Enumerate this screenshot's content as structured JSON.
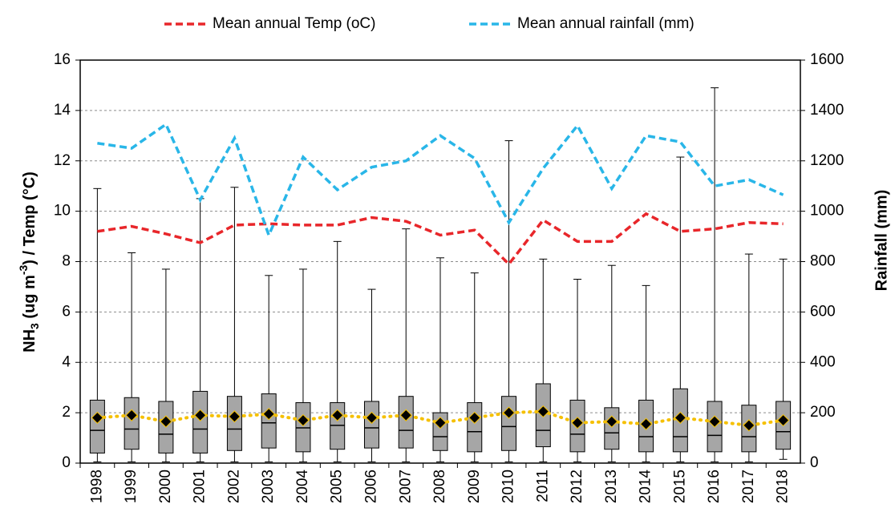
{
  "chart_data": {
    "type": "box",
    "categories": [
      "1998",
      "1999",
      "2000",
      "2001",
      "2002",
      "2003",
      "2004",
      "2005",
      "2006",
      "2007",
      "2008",
      "2009",
      "2010",
      "2011",
      "2012",
      "2013",
      "2014",
      "2015",
      "2016",
      "2017",
      "2018"
    ],
    "boxes": {
      "color": "#a6a6a6",
      "mean_color": "#000000",
      "mean_line_color": "#f5c000",
      "max": [
        10.9,
        8.35,
        7.7,
        10.5,
        10.95,
        7.45,
        7.7,
        8.8,
        6.9,
        9.3,
        8.15,
        7.55,
        12.8,
        8.1,
        7.3,
        7.85,
        7.05,
        12.15,
        14.9,
        8.3,
        8.1
      ],
      "q3": [
        2.5,
        2.6,
        2.45,
        2.85,
        2.65,
        2.75,
        2.4,
        2.4,
        2.45,
        2.65,
        2.0,
        2.4,
        2.65,
        3.15,
        2.5,
        2.2,
        2.5,
        2.95,
        2.45,
        2.3,
        2.45
      ],
      "median": [
        1.3,
        1.35,
        1.15,
        1.35,
        1.35,
        1.6,
        1.4,
        1.5,
        1.4,
        1.3,
        1.05,
        1.25,
        1.45,
        1.3,
        1.15,
        1.2,
        1.05,
        1.05,
        1.1,
        1.05,
        1.25
      ],
      "q1": [
        0.4,
        0.55,
        0.4,
        0.4,
        0.5,
        0.6,
        0.45,
        0.55,
        0.6,
        0.6,
        0.5,
        0.45,
        0.5,
        0.65,
        0.45,
        0.55,
        0.45,
        0.45,
        0.45,
        0.45,
        0.55
      ],
      "min": [
        0.05,
        0.05,
        0.05,
        0.05,
        0.05,
        0.05,
        0.05,
        0.05,
        0.05,
        0.05,
        0.05,
        0.05,
        0.05,
        0.05,
        0.05,
        0.05,
        0.05,
        0.05,
        0.05,
        0.05,
        0.15
      ],
      "mean": [
        1.8,
        1.9,
        1.65,
        1.9,
        1.85,
        1.95,
        1.7,
        1.9,
        1.8,
        1.9,
        1.6,
        1.8,
        2.0,
        2.05,
        1.6,
        1.65,
        1.55,
        1.8,
        1.65,
        1.5,
        1.7
      ]
    },
    "series": [
      {
        "name": "Mean annual Temp (oC)",
        "color": "#e8262a",
        "values": [
          9.2,
          9.4,
          9.1,
          8.75,
          9.45,
          9.5,
          9.45,
          9.45,
          9.75,
          9.6,
          9.05,
          9.25,
          7.9,
          9.65,
          8.8,
          8.8,
          9.9,
          9.2,
          9.3,
          9.55,
          9.5
        ]
      },
      {
        "name": "Mean annual rainfall (mm)",
        "color": "#29b6e8",
        "axis": "y2",
        "values": [
          1270,
          1250,
          1345,
          1045,
          1290,
          905,
          1215,
          1085,
          1175,
          1200,
          1300,
          1210,
          955,
          1170,
          1340,
          1090,
          1300,
          1275,
          1100,
          1125,
          1065
        ]
      }
    ],
    "ylabel": [
      "NH",
      "3",
      " (ug m",
      "-3",
      ") / Temp (°C)"
    ],
    "y2label": "Rainfall (mm)",
    "ylim": [
      0,
      16
    ],
    "yticks": [
      0,
      2,
      4,
      6,
      8,
      10,
      12,
      14,
      16
    ],
    "y2lim": [
      0,
      1600
    ],
    "y2ticks": [
      0,
      200,
      400,
      600,
      800,
      1000,
      1200,
      1400,
      1600
    ],
    "grid": true,
    "legend": "top"
  }
}
